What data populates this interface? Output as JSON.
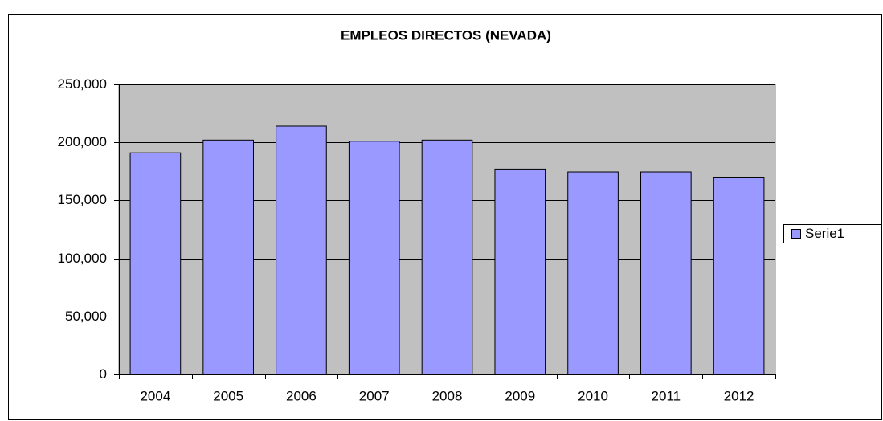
{
  "chart_data": {
    "type": "bar",
    "title": "EMPLEOS DIRECTOS (NEVADA)",
    "categories": [
      "2004",
      "2005",
      "2006",
      "2007",
      "2008",
      "2009",
      "2010",
      "2011",
      "2012"
    ],
    "series": [
      {
        "name": "Serie1",
        "color": "#9999ff",
        "values": [
          191000,
          202000,
          214000,
          201000,
          202000,
          177000,
          174500,
          174500,
          170000
        ]
      }
    ],
    "ylim": [
      0,
      250000
    ],
    "yticks": [
      0,
      {
        "value": 50000,
        "label": "50,000"
      },
      {
        "value": 100000,
        "label": "100,000"
      },
      {
        "value": 150000,
        "label": "150,000"
      },
      {
        "value": 200000,
        "label": "200,000"
      },
      {
        "value": 250000,
        "label": "250,000"
      }
    ],
    "grid": true,
    "legend": "right",
    "plot_background": "#c0c0c0"
  }
}
